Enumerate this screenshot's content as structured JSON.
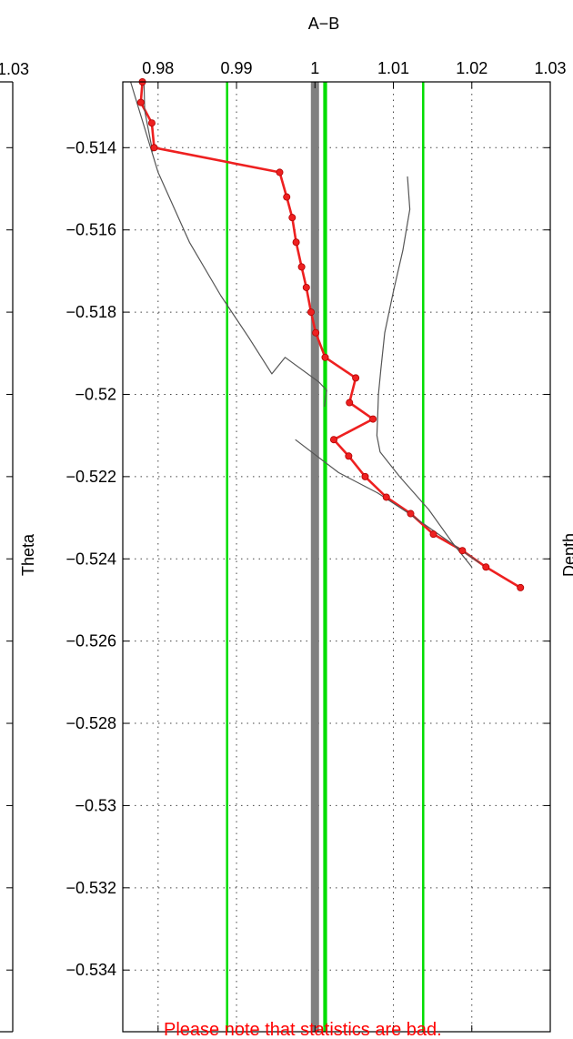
{
  "chart_data": {
    "type": "line",
    "title": "A−B",
    "ylabel": "Theta",
    "right_cut_label": "Depth",
    "left_cut_tick": "1.03",
    "note": "Please note that statistics are bad.",
    "xlim": [
      0.9755,
      1.03
    ],
    "ylim": [
      -0.5355,
      -0.5124
    ],
    "x_ticks": [
      0.98,
      0.99,
      1.0,
      1.01,
      1.02,
      1.03
    ],
    "x_tick_labels": [
      "0.98",
      "0.99",
      "1",
      "1.01",
      "1.02",
      "1.03"
    ],
    "y_ticks": [
      -0.514,
      -0.516,
      -0.518,
      -0.52,
      -0.522,
      -0.524,
      -0.526,
      -0.528,
      -0.53,
      -0.532,
      -0.534
    ],
    "y_tick_labels": [
      "−0.514",
      "−0.516",
      "−0.518",
      "−0.52",
      "−0.522",
      "−0.524",
      "−0.526",
      "−0.528",
      "−0.53",
      "−0.532",
      "−0.534"
    ],
    "grid": true,
    "vertical_lines": [
      {
        "x": 1.0,
        "color": "#808080",
        "style": "thick"
      },
      {
        "x": 0.9888,
        "color": "#00dd00"
      },
      {
        "x": 1.0012,
        "color": "#00dd00"
      },
      {
        "x": 1.0014,
        "color": "#00dd00"
      },
      {
        "x": 1.0138,
        "color": "#00dd00"
      }
    ],
    "series": [
      {
        "color": "#ee2020",
        "markers": true,
        "x": [
          0.978,
          0.9778,
          0.9792,
          0.9795,
          0.9955,
          0.9964,
          0.9971,
          0.9976,
          0.9983,
          0.9989,
          0.9995,
          1.0001,
          1.0013,
          1.0052,
          1.0044,
          1.0074,
          1.0024,
          1.0043,
          1.0064,
          1.0091,
          1.0122,
          1.0151,
          1.0188,
          1.0218,
          1.0262
        ],
        "y": [
          -0.5124,
          -0.5129,
          -0.5134,
          -0.514,
          -0.5146,
          -0.5152,
          -0.5157,
          -0.5163,
          -0.5169,
          -0.5174,
          -0.518,
          -0.5185,
          -0.5191,
          -0.5196,
          -0.5202,
          -0.5206,
          -0.5211,
          -0.5215,
          -0.522,
          -0.5225,
          -0.5229,
          -0.5234,
          -0.5238,
          -0.5242,
          -0.5247
        ]
      },
      {
        "color": "#555555",
        "x": [
          0.9765,
          0.98,
          0.984,
          0.988,
          0.9915,
          0.9945,
          0.9962,
          1.0005,
          1.0015,
          1.0012
        ],
        "y": [
          -0.5124,
          -0.5146,
          -0.5163,
          -0.5176,
          -0.5186,
          -0.5195,
          -0.5191,
          -0.5197,
          -0.5199,
          -0.5203
        ]
      },
      {
        "color": "#555555",
        "x": [
          0.9793,
          0.9783,
          0.9782
        ],
        "y": [
          -0.5141,
          -0.5131,
          -0.5124
        ]
      },
      {
        "color": "#555555",
        "x": [
          1.0118,
          1.0121,
          1.0112,
          1.01,
          1.0089,
          1.0084,
          1.0081,
          1.008,
          1.0079,
          1.0083,
          1.0108,
          1.0145,
          1.0175,
          1.02
        ],
        "y": [
          -0.5147,
          -0.5155,
          -0.5165,
          -0.5175,
          -0.5185,
          -0.5194,
          -0.52,
          -0.5205,
          -0.521,
          -0.5214,
          -0.522,
          -0.5228,
          -0.5236,
          -0.5242
        ]
      },
      {
        "color": "#555555",
        "x": [
          0.9975,
          1.003,
          1.008,
          1.012,
          1.015,
          1.018,
          1.021
        ],
        "y": [
          -0.5211,
          -0.5219,
          -0.5224,
          -0.5229,
          -0.5233,
          -0.5237,
          -0.5241
        ]
      }
    ]
  }
}
